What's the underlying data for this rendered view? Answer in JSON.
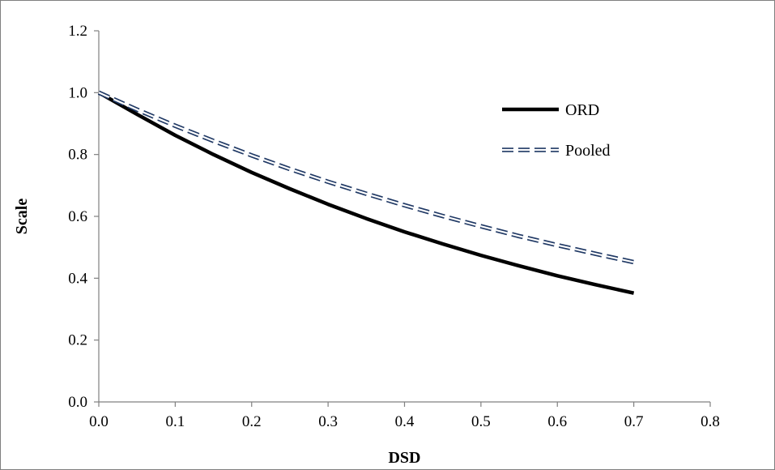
{
  "chart_data": {
    "type": "line",
    "xlabel": "DSD",
    "ylabel": "Scale",
    "xlim": [
      0.0,
      0.8
    ],
    "ylim": [
      0.0,
      1.2
    ],
    "xticks": [
      "0.0",
      "0.1",
      "0.2",
      "0.3",
      "0.4",
      "0.5",
      "0.6",
      "0.7",
      "0.8"
    ],
    "yticks": [
      "0.0",
      "0.2",
      "0.4",
      "0.6",
      "0.8",
      "1.0",
      "1.2"
    ],
    "grid": false,
    "legend_position": "top-right",
    "series": [
      {
        "name": "ORD",
        "style": "solid",
        "color": "#000000",
        "x": [
          0.0,
          0.05,
          0.1,
          0.15,
          0.2,
          0.25,
          0.3,
          0.35,
          0.4,
          0.45,
          0.5,
          0.55,
          0.6,
          0.65,
          0.7
        ],
        "y": [
          1.0,
          0.93,
          0.862,
          0.8,
          0.742,
          0.689,
          0.639,
          0.593,
          0.55,
          0.511,
          0.474,
          0.44,
          0.408,
          0.379,
          0.352
        ]
      },
      {
        "name": "Pooled",
        "style": "dashed",
        "color": "#1f3864",
        "x": [
          0.0,
          0.05,
          0.1,
          0.15,
          0.2,
          0.25,
          0.3,
          0.35,
          0.4,
          0.45,
          0.5,
          0.55,
          0.6,
          0.65,
          0.7
        ],
        "y": [
          1.0,
          0.945,
          0.893,
          0.844,
          0.797,
          0.753,
          0.712,
          0.673,
          0.636,
          0.601,
          0.568,
          0.536,
          0.507,
          0.479,
          0.452
        ]
      }
    ]
  }
}
